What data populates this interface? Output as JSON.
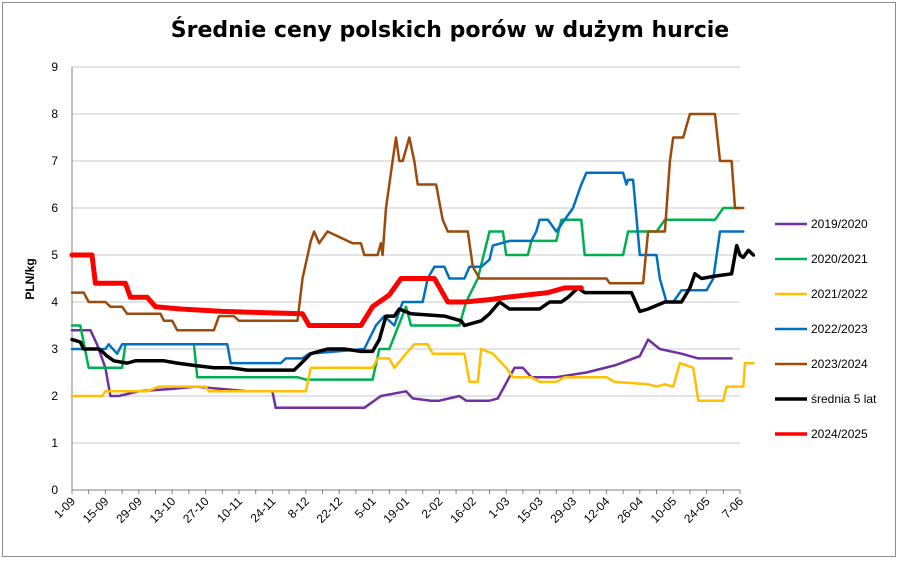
{
  "chart_data": {
    "type": "line",
    "title": "Średnie ceny polskich porów w dużym hurcie",
    "ylabel": "PLN/kg",
    "xlabel": "",
    "ylim": [
      0,
      9
    ],
    "yticks": [
      0,
      1,
      2,
      3,
      4,
      5,
      6,
      7,
      8,
      9
    ],
    "grid": "horizontal",
    "legend": "right",
    "n_points": 41,
    "categories": [
      "1-09",
      "15-09",
      "29-09",
      "13-10",
      "27-10",
      "10-11",
      "24-11",
      "8-12",
      "22-12",
      "5-01",
      "19-01",
      "2-02",
      "16-02",
      "1-03",
      "15-03",
      "29-03",
      "12-04",
      "26-04",
      "10-05",
      "24-05",
      "7-06"
    ],
    "series": [
      {
        "name": "2019/2020",
        "color": "#7030a0",
        "width": 2.5,
        "points": [
          [
            0,
            3.4
          ],
          [
            1.1,
            3.4
          ],
          [
            1.5,
            3.1
          ],
          [
            2,
            2.6
          ],
          [
            2.3,
            2.0
          ],
          [
            2.8,
            2.0
          ],
          [
            4,
            2.1
          ],
          [
            6,
            2.15
          ],
          [
            7.4,
            2.2
          ],
          [
            10.5,
            2.1
          ],
          [
            12,
            2.1
          ],
          [
            12.2,
            1.75
          ],
          [
            17,
            1.75
          ],
          [
            17.5,
            1.75
          ],
          [
            18.5,
            2.0
          ],
          [
            20,
            2.1
          ],
          [
            20.4,
            1.95
          ],
          [
            21.5,
            1.9
          ],
          [
            22,
            1.9
          ],
          [
            23.2,
            2.0
          ],
          [
            23.6,
            1.9
          ],
          [
            25,
            1.9
          ],
          [
            25.5,
            1.95
          ],
          [
            26.5,
            2.6
          ],
          [
            27,
            2.6
          ],
          [
            27.5,
            2.4
          ],
          [
            29,
            2.4
          ],
          [
            30.8,
            2.5
          ],
          [
            32.5,
            2.65
          ],
          [
            34,
            2.85
          ],
          [
            34.5,
            3.2
          ],
          [
            35.2,
            3.0
          ],
          [
            36.5,
            2.9
          ],
          [
            37.5,
            2.8
          ],
          [
            39.5,
            2.8
          ]
        ]
      },
      {
        "name": "2020/2021",
        "color": "#00b050",
        "width": 2.5,
        "points": [
          [
            0,
            3.5
          ],
          [
            0.5,
            3.5
          ],
          [
            1,
            2.6
          ],
          [
            3,
            2.6
          ],
          [
            3.2,
            3.1
          ],
          [
            7.3,
            3.1
          ],
          [
            7.5,
            2.4
          ],
          [
            13.5,
            2.4
          ],
          [
            14,
            2.35
          ],
          [
            18,
            2.35
          ],
          [
            18.4,
            3.0
          ],
          [
            19,
            3.0
          ],
          [
            20,
            3.9
          ],
          [
            20.3,
            3.5
          ],
          [
            23.2,
            3.5
          ],
          [
            23.6,
            4.0
          ],
          [
            24.3,
            4.5
          ],
          [
            25,
            5.5
          ],
          [
            25.8,
            5.5
          ],
          [
            26,
            5.0
          ],
          [
            27.3,
            5.0
          ],
          [
            27.5,
            5.3
          ],
          [
            29,
            5.3
          ],
          [
            29.3,
            5.75
          ],
          [
            30.5,
            5.75
          ],
          [
            30.7,
            5.0
          ],
          [
            33,
            5.0
          ],
          [
            33.3,
            5.5
          ],
          [
            35,
            5.5
          ],
          [
            35.5,
            5.75
          ],
          [
            38.5,
            5.75
          ],
          [
            39,
            6.0
          ],
          [
            40,
            6.0
          ]
        ]
      },
      {
        "name": "2021/2022",
        "color": "#ffc000",
        "width": 2.5,
        "points": [
          [
            0,
            2.0
          ],
          [
            1.8,
            2.0
          ],
          [
            2,
            2.1
          ],
          [
            4.5,
            2.1
          ],
          [
            5.2,
            2.2
          ],
          [
            8,
            2.2
          ],
          [
            8.2,
            2.1
          ],
          [
            14,
            2.1
          ],
          [
            14.3,
            2.6
          ],
          [
            18,
            2.6
          ],
          [
            18.3,
            2.8
          ],
          [
            19,
            2.8
          ],
          [
            19.3,
            2.6
          ],
          [
            20,
            2.9
          ],
          [
            20.5,
            3.1
          ],
          [
            21.3,
            3.1
          ],
          [
            21.6,
            2.9
          ],
          [
            23.5,
            2.9
          ],
          [
            23.8,
            2.3
          ],
          [
            24.3,
            2.3
          ],
          [
            24.5,
            3.0
          ],
          [
            25.2,
            2.9
          ],
          [
            26,
            2.6
          ],
          [
            26.4,
            2.4
          ],
          [
            27.5,
            2.4
          ],
          [
            28,
            2.3
          ],
          [
            29,
            2.3
          ],
          [
            29.5,
            2.4
          ],
          [
            32,
            2.4
          ],
          [
            32.5,
            2.3
          ],
          [
            34.5,
            2.25
          ],
          [
            35,
            2.2
          ],
          [
            35.5,
            2.25
          ],
          [
            36,
            2.2
          ],
          [
            36.4,
            2.7
          ],
          [
            37.2,
            2.6
          ],
          [
            37.5,
            1.9
          ],
          [
            39,
            1.9
          ],
          [
            39.2,
            2.2
          ],
          [
            40.2,
            2.2
          ],
          [
            40.3,
            2.7
          ],
          [
            40.8,
            2.7
          ]
        ]
      },
      {
        "name": "2022/2023",
        "color": "#0070c0",
        "width": 2.5,
        "points": [
          [
            0,
            3.0
          ],
          [
            2,
            3.0
          ],
          [
            2.2,
            3.1
          ],
          [
            2.7,
            2.9
          ],
          [
            3,
            3.1
          ],
          [
            9.3,
            3.1
          ],
          [
            9.5,
            2.7
          ],
          [
            12.5,
            2.7
          ],
          [
            12.8,
            2.8
          ],
          [
            13.8,
            2.8
          ],
          [
            14.2,
            2.9
          ],
          [
            17.5,
            3.0
          ],
          [
            18.2,
            3.5
          ],
          [
            18.7,
            3.7
          ],
          [
            19.3,
            3.5
          ],
          [
            19.8,
            4.0
          ],
          [
            21,
            4.0
          ],
          [
            21.3,
            4.5
          ],
          [
            21.7,
            4.75
          ],
          [
            22.3,
            4.75
          ],
          [
            22.6,
            4.5
          ],
          [
            23.5,
            4.5
          ],
          [
            23.8,
            4.75
          ],
          [
            24.5,
            4.75
          ],
          [
            25,
            4.9
          ],
          [
            25.2,
            5.2
          ],
          [
            26.2,
            5.3
          ],
          [
            27.5,
            5.3
          ],
          [
            27.8,
            5.5
          ],
          [
            28,
            5.75
          ],
          [
            28.5,
            5.75
          ],
          [
            29,
            5.5
          ],
          [
            30,
            6.0
          ],
          [
            30.5,
            6.5
          ],
          [
            30.8,
            6.75
          ],
          [
            33,
            6.75
          ],
          [
            33.2,
            6.5
          ],
          [
            33.3,
            6.6
          ],
          [
            33.6,
            6.6
          ],
          [
            34,
            5.0
          ],
          [
            35,
            5.0
          ],
          [
            35.2,
            4.5
          ],
          [
            35.6,
            4.0
          ],
          [
            36,
            4.0
          ],
          [
            36.5,
            4.25
          ],
          [
            38,
            4.25
          ],
          [
            38.4,
            4.5
          ],
          [
            38.8,
            5.5
          ],
          [
            40.2,
            5.5
          ]
        ]
      },
      {
        "name": "2023/2024",
        "color": "#9c4b0c",
        "width": 2.5,
        "points": [
          [
            0,
            4.2
          ],
          [
            0.7,
            4.2
          ],
          [
            1,
            4.0
          ],
          [
            2,
            4.0
          ],
          [
            2.3,
            3.9
          ],
          [
            3,
            3.9
          ],
          [
            3.3,
            3.75
          ],
          [
            5.3,
            3.75
          ],
          [
            5.5,
            3.6
          ],
          [
            6,
            3.6
          ],
          [
            6.3,
            3.4
          ],
          [
            8.5,
            3.4
          ],
          [
            8.8,
            3.7
          ],
          [
            9.7,
            3.7
          ],
          [
            10,
            3.6
          ],
          [
            13.5,
            3.6
          ],
          [
            13.8,
            4.5
          ],
          [
            14.3,
            5.3
          ],
          [
            14.5,
            5.5
          ],
          [
            14.8,
            5.25
          ],
          [
            15.3,
            5.5
          ],
          [
            16.8,
            5.25
          ],
          [
            17.3,
            5.25
          ],
          [
            17.5,
            5.0
          ],
          [
            17.8,
            5.0
          ],
          [
            18.3,
            5.0
          ],
          [
            18.5,
            5.25
          ],
          [
            18.6,
            5.0
          ],
          [
            18.8,
            6.0
          ],
          [
            19.2,
            7.0
          ],
          [
            19.4,
            7.5
          ],
          [
            19.6,
            7.0
          ],
          [
            19.8,
            7.0
          ],
          [
            20.2,
            7.5
          ],
          [
            20.5,
            7.0
          ],
          [
            20.7,
            6.5
          ],
          [
            21.8,
            6.5
          ],
          [
            22.2,
            5.75
          ],
          [
            22.5,
            5.5
          ],
          [
            23.7,
            5.5
          ],
          [
            24,
            4.75
          ],
          [
            24.4,
            4.5
          ],
          [
            32,
            4.5
          ],
          [
            32.2,
            4.4
          ],
          [
            34.2,
            4.4
          ],
          [
            34.5,
            5.5
          ],
          [
            35.5,
            5.5
          ],
          [
            35.8,
            7.0
          ],
          [
            36,
            7.5
          ],
          [
            36.6,
            7.5
          ],
          [
            37,
            8.0
          ],
          [
            38.5,
            8.0
          ],
          [
            38.8,
            7.0
          ],
          [
            39.5,
            7.0
          ],
          [
            39.7,
            6.0
          ],
          [
            40.2,
            6.0
          ]
        ]
      },
      {
        "name": "średnia 5 lat",
        "color": "#000000",
        "width": 3.5,
        "points": [
          [
            0,
            3.2
          ],
          [
            0.5,
            3.15
          ],
          [
            0.7,
            3.0
          ],
          [
            1.6,
            3.0
          ],
          [
            1.8,
            2.95
          ],
          [
            2.1,
            2.85
          ],
          [
            2.5,
            2.75
          ],
          [
            3.3,
            2.7
          ],
          [
            3.8,
            2.75
          ],
          [
            5.5,
            2.75
          ],
          [
            6.3,
            2.7
          ],
          [
            7.3,
            2.65
          ],
          [
            8.5,
            2.6
          ],
          [
            9.5,
            2.6
          ],
          [
            10.5,
            2.55
          ],
          [
            12.5,
            2.55
          ],
          [
            13.3,
            2.55
          ],
          [
            13.6,
            2.65
          ],
          [
            14.3,
            2.9
          ],
          [
            15.3,
            3.0
          ],
          [
            16.3,
            3.0
          ],
          [
            17.3,
            2.95
          ],
          [
            18,
            2.95
          ],
          [
            18.4,
            3.2
          ],
          [
            18.8,
            3.7
          ],
          [
            19.3,
            3.7
          ],
          [
            19.6,
            3.85
          ],
          [
            20.3,
            3.75
          ],
          [
            22.3,
            3.7
          ],
          [
            23.3,
            3.6
          ],
          [
            23.5,
            3.5
          ],
          [
            24.5,
            3.6
          ],
          [
            25,
            3.75
          ],
          [
            25.6,
            4.0
          ],
          [
            26.2,
            3.85
          ],
          [
            28,
            3.85
          ],
          [
            28.6,
            4.0
          ],
          [
            29.3,
            4.0
          ],
          [
            29.7,
            4.1
          ],
          [
            30.3,
            4.3
          ],
          [
            30.7,
            4.2
          ],
          [
            31.5,
            4.2
          ],
          [
            33.5,
            4.2
          ],
          [
            34,
            3.8
          ],
          [
            34.5,
            3.85
          ],
          [
            35.5,
            4.0
          ],
          [
            36.5,
            4.0
          ],
          [
            37,
            4.3
          ],
          [
            37.3,
            4.6
          ],
          [
            37.7,
            4.5
          ],
          [
            38.5,
            4.55
          ],
          [
            39.5,
            4.6
          ],
          [
            39.8,
            5.2
          ],
          [
            40,
            5.0
          ],
          [
            40.2,
            4.95
          ],
          [
            40.5,
            5.1
          ],
          [
            40.8,
            5.0
          ]
        ]
      },
      {
        "name": "2024/2025",
        "color": "#ff0000",
        "width": 5,
        "points": [
          [
            0,
            5.0
          ],
          [
            1.2,
            5.0
          ],
          [
            1.4,
            4.4
          ],
          [
            3.2,
            4.4
          ],
          [
            3.5,
            4.1
          ],
          [
            4.5,
            4.1
          ],
          [
            5,
            3.9
          ],
          [
            6.5,
            3.85
          ],
          [
            9,
            3.8
          ],
          [
            13.8,
            3.75
          ],
          [
            14.2,
            3.5
          ],
          [
            17.3,
            3.5
          ],
          [
            18,
            3.9
          ],
          [
            19,
            4.15
          ],
          [
            19.7,
            4.5
          ],
          [
            21.7,
            4.5
          ],
          [
            22.5,
            4.0
          ],
          [
            23.5,
            4.0
          ],
          [
            25,
            4.05
          ],
          [
            26,
            4.1
          ],
          [
            28.5,
            4.2
          ],
          [
            29.5,
            4.3
          ],
          [
            30.5,
            4.3
          ]
        ]
      }
    ]
  }
}
